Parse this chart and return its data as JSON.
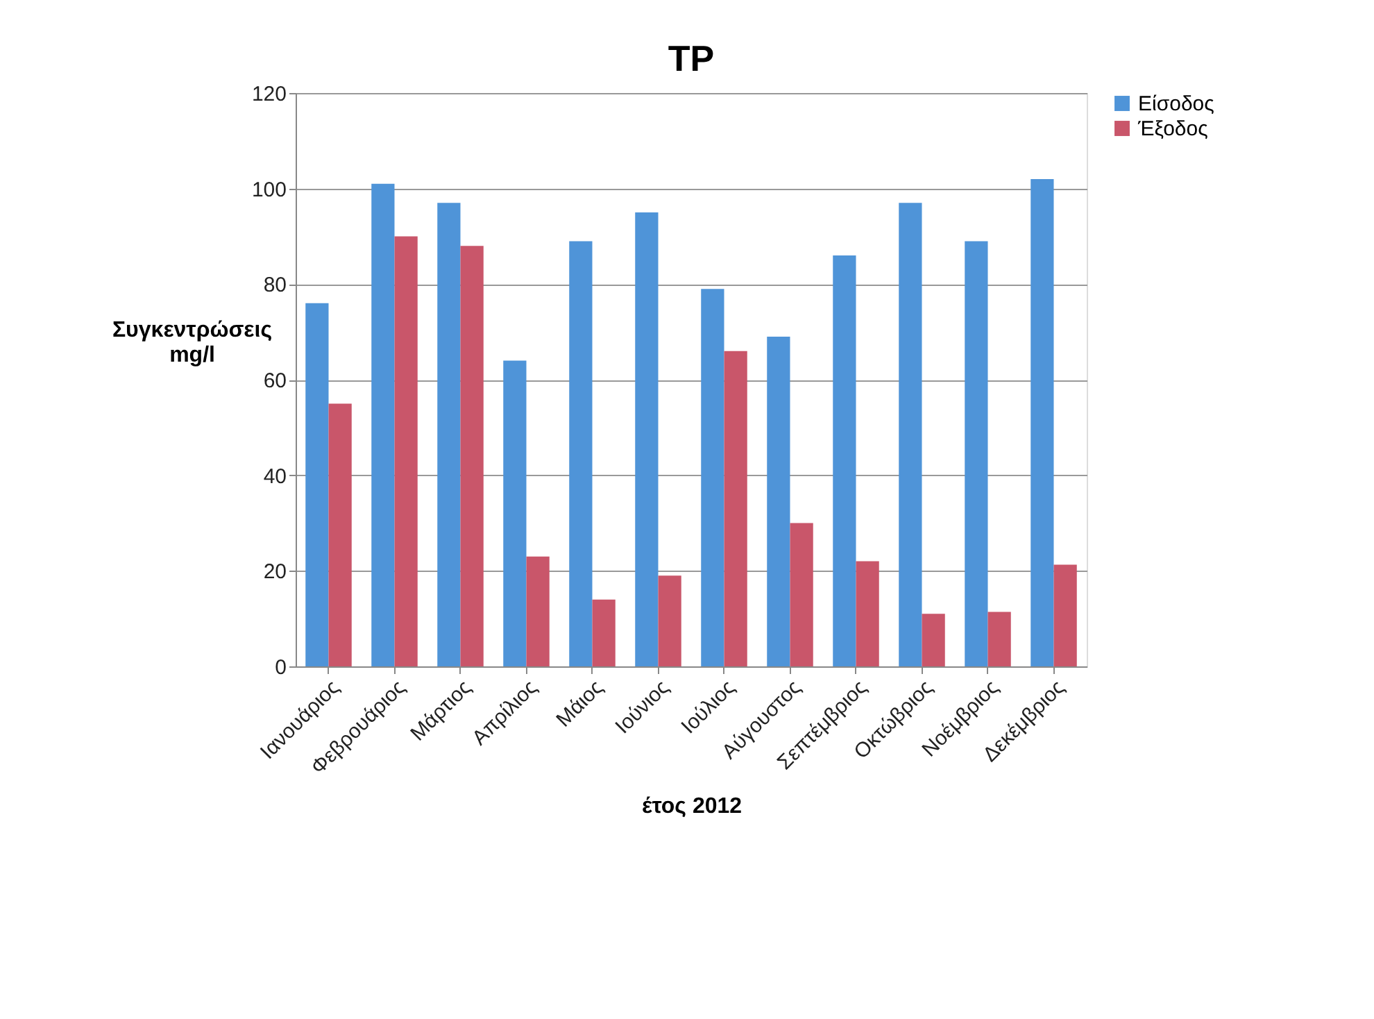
{
  "chart_data": {
    "type": "bar",
    "title": "TP",
    "xlabel": "έτος 2012",
    "ylabel": "Συγκεντρώσεις\nmg/l",
    "categories": [
      "Ιανουάριος",
      "Φεβρουάριος",
      "Μάρτιος",
      "Απρίλιος",
      "Μάιος",
      "Ιούνιος",
      "Ιούλιος",
      "Αύγουστος",
      "Σεπτέμβριος",
      "Οκτώβριος",
      "Νοέμβριος",
      "Δεκέμβριος"
    ],
    "series": [
      {
        "name": "Είσοδος",
        "color": "#4f94d8",
        "values": [
          76,
          101,
          97,
          64,
          89,
          95,
          79,
          69,
          86,
          97,
          89,
          102
        ]
      },
      {
        "name": "Έξοδος",
        "color": "#c9566a",
        "values": [
          55,
          90,
          88,
          23,
          14,
          19,
          66,
          30,
          22,
          11,
          11.4,
          21.3
        ]
      }
    ],
    "ylim": [
      0,
      120
    ],
    "yticks": [
      0,
      20,
      40,
      60,
      80,
      100,
      120
    ],
    "grid": "y",
    "legend": "right"
  }
}
